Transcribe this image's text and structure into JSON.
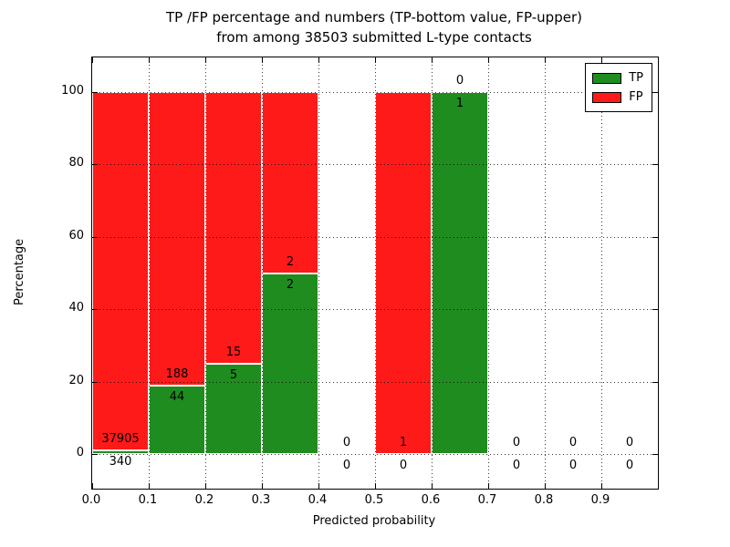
{
  "title": {
    "line1": "TP /FP percentage and numbers (TP-bottom value, FP-upper)",
    "line2": "from among 38503 submitted L-type contacts"
  },
  "axes": {
    "xlabel": "Predicted probability",
    "ylabel": "Percentage",
    "x_tick_labels": [
      "0.0",
      "0.1",
      "0.2",
      "0.3",
      "0.4",
      "0.5",
      "0.6",
      "0.7",
      "0.8",
      "0.9"
    ],
    "y_tick_labels": [
      "0",
      "20",
      "40",
      "60",
      "80",
      "100"
    ],
    "y_tick_values": [
      0,
      20,
      40,
      60,
      80,
      100
    ],
    "ylim": [
      -10,
      110
    ],
    "grid": "dotted"
  },
  "legend": {
    "entries": [
      {
        "name": "tp",
        "label": "TP",
        "color": "#1f8c1f"
      },
      {
        "name": "fp",
        "label": "FP",
        "color": "#ff1a1a"
      }
    ]
  },
  "colors": {
    "tp_green": "#1f8c1f",
    "fp_red": "#ff1a1a",
    "bar_edge": "#ffffff",
    "text": "#000000"
  },
  "chart_data": {
    "type": "bar",
    "stacked": true,
    "title": "TP /FP percentage and numbers (TP-bottom value, FP-upper) from among 38503 submitted L-type contacts",
    "xlabel": "Predicted probability",
    "ylabel": "Percentage",
    "ylim": [
      -10,
      110
    ],
    "total_submitted": 38503,
    "legend_position": "upper right",
    "note": "Each bin shows TP count (bottom label) and FP count (upper label); bar is split at TP percentage of bin total",
    "bins": [
      {
        "range": "0.0-0.1",
        "x_start": 0.0,
        "tp_count": 340,
        "fp_count": 37905,
        "tp_pct": 0.89,
        "fp_pct": 99.11,
        "has_bar": true
      },
      {
        "range": "0.1-0.2",
        "x_start": 0.1,
        "tp_count": 44,
        "fp_count": 188,
        "tp_pct": 18.97,
        "fp_pct": 81.03,
        "has_bar": true
      },
      {
        "range": "0.2-0.3",
        "x_start": 0.2,
        "tp_count": 5,
        "fp_count": 15,
        "tp_pct": 25.0,
        "fp_pct": 75.0,
        "has_bar": true
      },
      {
        "range": "0.3-0.4",
        "x_start": 0.3,
        "tp_count": 2,
        "fp_count": 2,
        "tp_pct": 50.0,
        "fp_pct": 50.0,
        "has_bar": true
      },
      {
        "range": "0.4-0.5",
        "x_start": 0.4,
        "tp_count": 0,
        "fp_count": 0,
        "tp_pct": 0,
        "fp_pct": 0,
        "has_bar": false
      },
      {
        "range": "0.5-0.6",
        "x_start": 0.5,
        "tp_count": 0,
        "fp_count": 1,
        "tp_pct": 0,
        "fp_pct": 100.0,
        "has_bar": true
      },
      {
        "range": "0.6-0.7",
        "x_start": 0.6,
        "tp_count": 1,
        "fp_count": 0,
        "tp_pct": 100.0,
        "fp_pct": 0,
        "has_bar": true
      },
      {
        "range": "0.7-0.8",
        "x_start": 0.7,
        "tp_count": 0,
        "fp_count": 0,
        "tp_pct": 0,
        "fp_pct": 0,
        "has_bar": false
      },
      {
        "range": "0.8-0.9",
        "x_start": 0.8,
        "tp_count": 0,
        "fp_count": 0,
        "tp_pct": 0,
        "fp_pct": 0,
        "has_bar": false
      },
      {
        "range": "0.9-1.0",
        "x_start": 0.9,
        "tp_count": 0,
        "fp_count": 0,
        "tp_pct": 0,
        "fp_pct": 0,
        "has_bar": false
      }
    ]
  }
}
